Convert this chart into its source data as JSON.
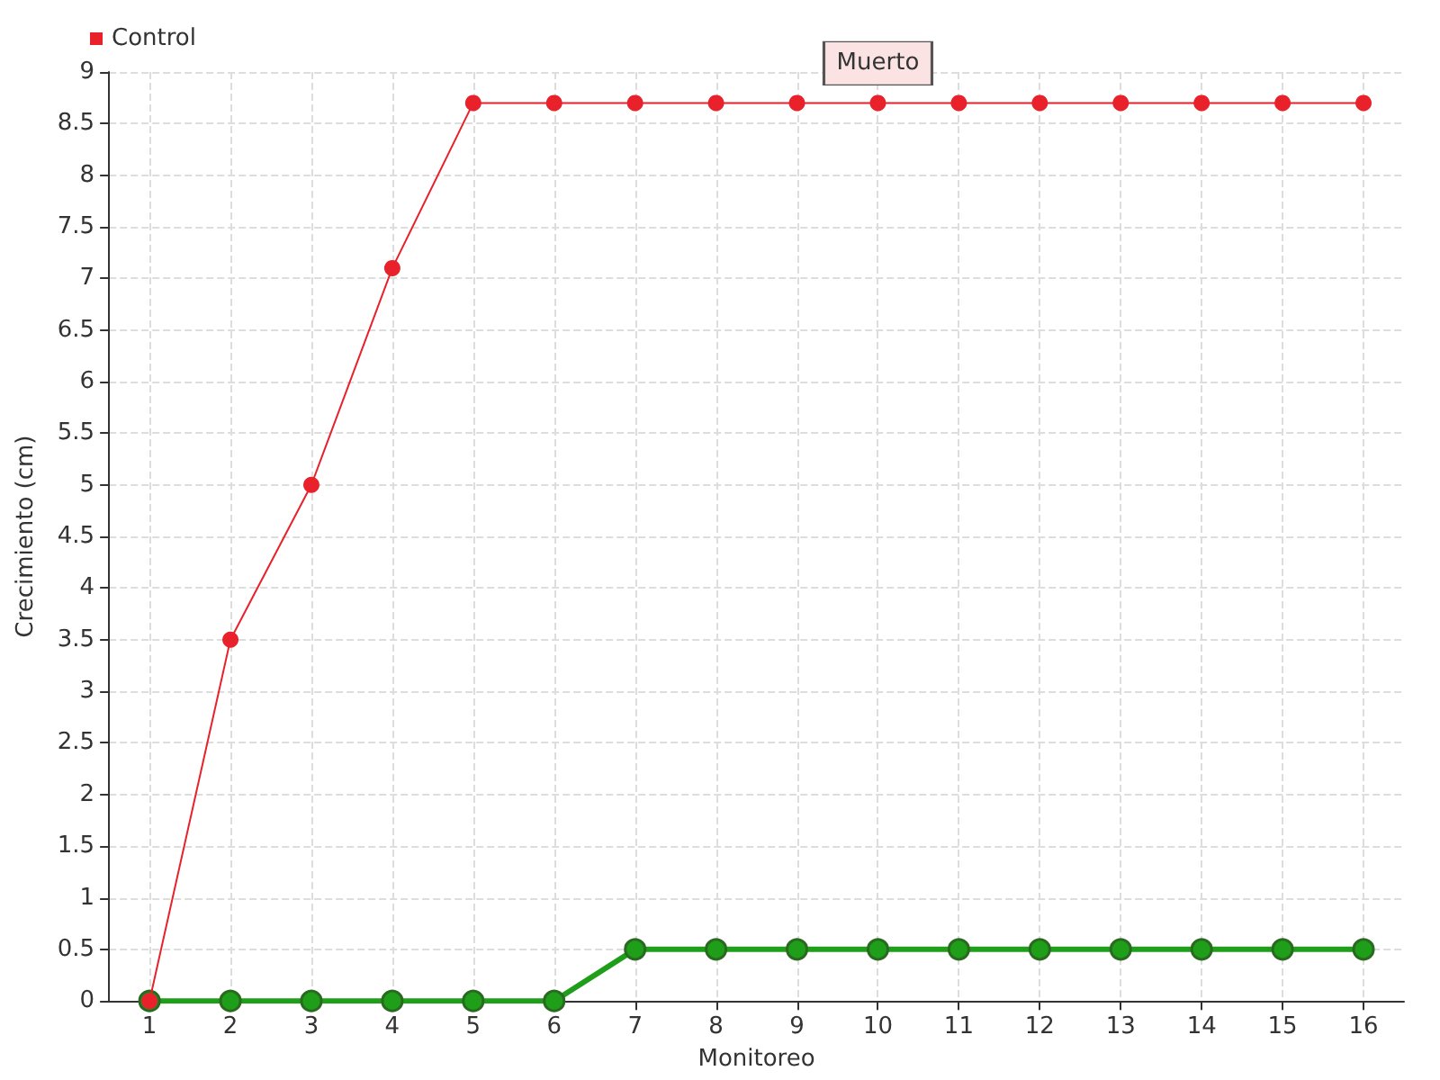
{
  "chart_data": {
    "type": "line",
    "xlabel": "Monitoreo",
    "ylabel": "Crecimiento (cm)",
    "x": [
      1,
      2,
      3,
      4,
      5,
      6,
      7,
      8,
      9,
      10,
      11,
      12,
      13,
      14,
      15,
      16
    ],
    "xlim": [
      0.5,
      16.5
    ],
    "xticks": [
      1,
      2,
      3,
      4,
      5,
      6,
      7,
      8,
      9,
      10,
      11,
      12,
      13,
      14,
      15,
      16
    ],
    "series": [
      {
        "color": "#1f9e1a",
        "values": [
          0,
          0,
          0,
          0,
          0,
          0,
          0.5,
          0.5,
          0.5,
          0.5,
          0.5,
          0.5,
          0.5,
          0.5,
          0.5,
          0.5
        ]
      },
      {
        "name": "Control",
        "color": "#e8212b",
        "values": [
          0,
          3.5,
          5,
          7.1,
          8.7,
          8.7,
          8.7,
          8.7,
          8.7,
          8.7,
          8.7,
          8.7,
          8.7,
          8.7,
          8.7,
          8.7
        ]
      }
    ],
    "ylim": [
      0,
      9
    ],
    "yticks": [
      0,
      0.5,
      1,
      1.5,
      2,
      2.5,
      3,
      3.5,
      4,
      4.5,
      5,
      5.5,
      6,
      6.5,
      7,
      7.5,
      8,
      8.5,
      9
    ],
    "annotations": [
      {
        "text": "Muerto",
        "x": 10,
        "y": 8.7
      }
    ],
    "grid": true,
    "legend": "top left",
    "marker": "circle",
    "line_style": "solid"
  }
}
